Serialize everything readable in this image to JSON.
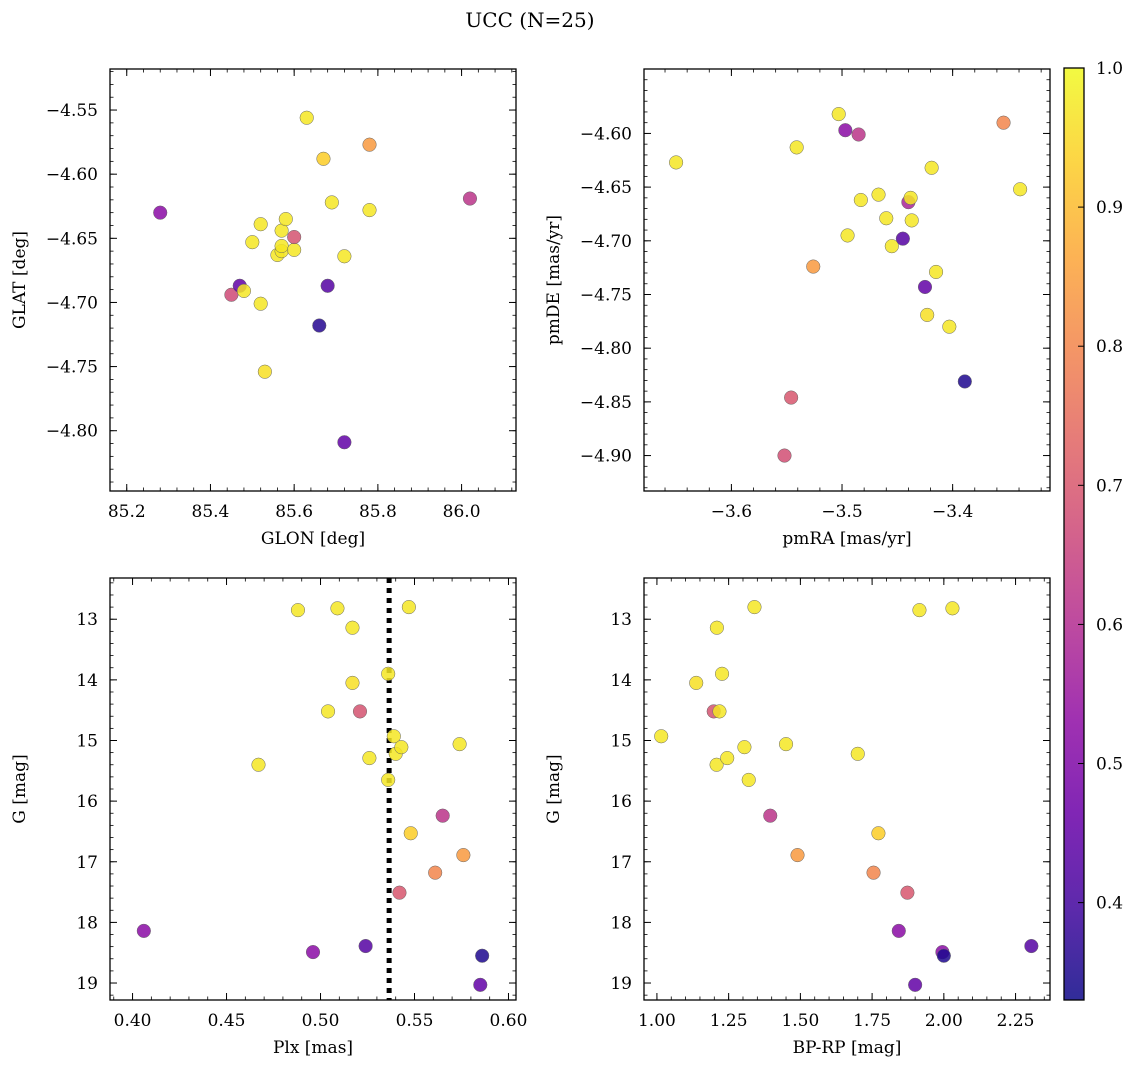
{
  "title": "UCC (N=25)",
  "colorbar": {
    "cmap": "plasma",
    "range": [
      0.33,
      1.0
    ],
    "ticks": [
      "1.0",
      "0.9",
      "0.8",
      "0.7",
      "0.6",
      "0.5",
      "0.4"
    ],
    "tick_values": [
      1.0,
      0.9,
      0.8,
      0.7,
      0.6,
      0.5,
      0.4
    ]
  },
  "chart_data": [
    {
      "type": "scatter",
      "xlabel": "GLON [deg]",
      "ylabel": "GLAT [deg]",
      "xlim": [
        85.16,
        86.13
      ],
      "ylim": [
        -4.847,
        -4.518
      ],
      "xticks": [
        "85.2",
        "85.4",
        "85.6",
        "85.8",
        "86.0"
      ],
      "xtick_values": [
        85.2,
        85.4,
        85.6,
        85.8,
        86.0
      ],
      "yticks": [
        "−4.55",
        "−4.60",
        "−4.65",
        "−4.70",
        "−4.75",
        "−4.80"
      ],
      "ytick_values": [
        -4.55,
        -4.6,
        -4.65,
        -4.7,
        -4.75,
        -4.8
      ],
      "points": [
        {
          "x": 85.28,
          "y": -4.63,
          "c": 0.52
        },
        {
          "x": 85.45,
          "y": -4.694,
          "c": 0.67
        },
        {
          "x": 85.47,
          "y": -4.687,
          "c": 0.45
        },
        {
          "x": 85.48,
          "y": -4.691,
          "c": 0.97
        },
        {
          "x": 85.5,
          "y": -4.653,
          "c": 0.97
        },
        {
          "x": 85.52,
          "y": -4.639,
          "c": 0.97
        },
        {
          "x": 85.52,
          "y": -4.701,
          "c": 0.97
        },
        {
          "x": 85.53,
          "y": -4.754,
          "c": 0.96
        },
        {
          "x": 85.56,
          "y": -4.663,
          "c": 0.97
        },
        {
          "x": 85.57,
          "y": -4.66,
          "c": 0.97
        },
        {
          "x": 85.57,
          "y": -4.656,
          "c": 0.97
        },
        {
          "x": 85.57,
          "y": -4.644,
          "c": 0.97
        },
        {
          "x": 85.58,
          "y": -4.635,
          "c": 0.97
        },
        {
          "x": 85.6,
          "y": -4.659,
          "c": 0.97
        },
        {
          "x": 85.6,
          "y": -4.649,
          "c": 0.69
        },
        {
          "x": 85.63,
          "y": -4.556,
          "c": 0.97
        },
        {
          "x": 85.66,
          "y": -4.718,
          "c": 0.36
        },
        {
          "x": 85.67,
          "y": -4.588,
          "c": 0.93
        },
        {
          "x": 85.68,
          "y": -4.687,
          "c": 0.43
        },
        {
          "x": 85.69,
          "y": -4.622,
          "c": 0.97
        },
        {
          "x": 85.72,
          "y": -4.664,
          "c": 0.97
        },
        {
          "x": 85.72,
          "y": -4.809,
          "c": 0.45
        },
        {
          "x": 85.78,
          "y": -4.577,
          "c": 0.84
        },
        {
          "x": 85.78,
          "y": -4.628,
          "c": 0.97
        },
        {
          "x": 86.02,
          "y": -4.619,
          "c": 0.62
        }
      ]
    },
    {
      "type": "scatter",
      "xlabel": "pmRA [mas/yr]",
      "ylabel": "pmDE [mas/yr]",
      "xlim": [
        -3.679,
        -3.312
      ],
      "ylim": [
        -4.933,
        -4.54
      ],
      "xticks": [
        "−3.6",
        "−3.5",
        "−3.4"
      ],
      "xtick_values": [
        -3.6,
        -3.5,
        -3.4
      ],
      "yticks": [
        "−4.60",
        "−4.65",
        "−4.70",
        "−4.75",
        "−4.80",
        "−4.85",
        "−4.90"
      ],
      "ytick_values": [
        -4.6,
        -4.65,
        -4.7,
        -4.75,
        -4.8,
        -4.85,
        -4.9
      ],
      "points": [
        {
          "x": -3.65,
          "y": -4.627,
          "c": 0.97
        },
        {
          "x": -3.552,
          "y": -4.9,
          "c": 0.68
        },
        {
          "x": -3.546,
          "y": -4.846,
          "c": 0.7
        },
        {
          "x": -3.541,
          "y": -4.613,
          "c": 0.97
        },
        {
          "x": -3.526,
          "y": -4.724,
          "c": 0.84
        },
        {
          "x": -3.503,
          "y": -4.582,
          "c": 0.97
        },
        {
          "x": -3.497,
          "y": -4.597,
          "c": 0.52
        },
        {
          "x": -3.495,
          "y": -4.695,
          "c": 0.97
        },
        {
          "x": -3.485,
          "y": -4.601,
          "c": 0.62
        },
        {
          "x": -3.483,
          "y": -4.662,
          "c": 0.97
        },
        {
          "x": -3.467,
          "y": -4.657,
          "c": 0.97
        },
        {
          "x": -3.46,
          "y": -4.679,
          "c": 0.97
        },
        {
          "x": -3.455,
          "y": -4.705,
          "c": 0.97
        },
        {
          "x": -3.445,
          "y": -4.698,
          "c": 0.43
        },
        {
          "x": -3.44,
          "y": -4.664,
          "c": 0.58
        },
        {
          "x": -3.438,
          "y": -4.66,
          "c": 0.97
        },
        {
          "x": -3.437,
          "y": -4.681,
          "c": 0.97
        },
        {
          "x": -3.425,
          "y": -4.743,
          "c": 0.45
        },
        {
          "x": -3.423,
          "y": -4.769,
          "c": 0.96
        },
        {
          "x": -3.419,
          "y": -4.632,
          "c": 0.97
        },
        {
          "x": -3.415,
          "y": -4.729,
          "c": 0.97
        },
        {
          "x": -3.403,
          "y": -4.78,
          "c": 0.97
        },
        {
          "x": -3.389,
          "y": -4.831,
          "c": 0.35
        },
        {
          "x": -3.354,
          "y": -4.59,
          "c": 0.8
        },
        {
          "x": -3.339,
          "y": -4.652,
          "c": 0.97
        }
      ]
    },
    {
      "type": "scatter",
      "xlabel": "Plx [mas]",
      "ylabel": "G [mag]",
      "xlim": [
        0.388,
        0.604
      ],
      "ylim": [
        19.28,
        12.32
      ],
      "xticks": [
        "0.40",
        "0.45",
        "0.50",
        "0.55",
        "0.60"
      ],
      "xtick_values": [
        0.4,
        0.45,
        0.5,
        0.55,
        0.6
      ],
      "yticks": [
        "13",
        "14",
        "15",
        "16",
        "17",
        "18",
        "19"
      ],
      "ytick_values": [
        13,
        14,
        15,
        16,
        17,
        18,
        19
      ],
      "vline": 0.5365,
      "points": [
        {
          "x": 0.406,
          "y": 18.14,
          "c": 0.52
        },
        {
          "x": 0.467,
          "y": 15.4,
          "c": 0.97
        },
        {
          "x": 0.488,
          "y": 12.85,
          "c": 0.97
        },
        {
          "x": 0.496,
          "y": 18.49,
          "c": 0.52
        },
        {
          "x": 0.504,
          "y": 14.52,
          "c": 0.97
        },
        {
          "x": 0.509,
          "y": 12.82,
          "c": 0.97
        },
        {
          "x": 0.517,
          "y": 14.05,
          "c": 0.96
        },
        {
          "x": 0.517,
          "y": 13.14,
          "c": 0.97
        },
        {
          "x": 0.521,
          "y": 14.52,
          "c": 0.69
        },
        {
          "x": 0.524,
          "y": 18.39,
          "c": 0.43
        },
        {
          "x": 0.526,
          "y": 15.29,
          "c": 0.97
        },
        {
          "x": 0.536,
          "y": 13.9,
          "c": 0.97
        },
        {
          "x": 0.536,
          "y": 15.65,
          "c": 0.97
        },
        {
          "x": 0.539,
          "y": 14.93,
          "c": 0.97
        },
        {
          "x": 0.54,
          "y": 15.22,
          "c": 0.97
        },
        {
          "x": 0.542,
          "y": 17.51,
          "c": 0.7
        },
        {
          "x": 0.543,
          "y": 15.11,
          "c": 0.97
        },
        {
          "x": 0.547,
          "y": 12.8,
          "c": 0.97
        },
        {
          "x": 0.548,
          "y": 16.53,
          "c": 0.93
        },
        {
          "x": 0.561,
          "y": 17.18,
          "c": 0.8
        },
        {
          "x": 0.565,
          "y": 16.24,
          "c": 0.62
        },
        {
          "x": 0.574,
          "y": 15.06,
          "c": 0.97
        },
        {
          "x": 0.576,
          "y": 16.89,
          "c": 0.84
        },
        {
          "x": 0.585,
          "y": 19.03,
          "c": 0.45
        },
        {
          "x": 0.586,
          "y": 18.55,
          "c": 0.35
        }
      ]
    },
    {
      "type": "scatter",
      "xlabel": "BP-RP [mag]",
      "ylabel": "G [mag]",
      "xlim": [
        0.955,
        2.37
      ],
      "ylim": [
        19.28,
        12.32
      ],
      "xticks": [
        "1.00",
        "1.25",
        "1.50",
        "1.75",
        "2.00",
        "2.25"
      ],
      "xtick_values": [
        1.0,
        1.25,
        1.5,
        1.75,
        2.0,
        2.25
      ],
      "yticks": [
        "13",
        "14",
        "15",
        "16",
        "17",
        "18",
        "19"
      ],
      "ytick_values": [
        13,
        14,
        15,
        16,
        17,
        18,
        19
      ],
      "points": [
        {
          "x": 1.015,
          "y": 14.93,
          "c": 0.97
        },
        {
          "x": 1.137,
          "y": 14.05,
          "c": 0.96
        },
        {
          "x": 1.198,
          "y": 14.52,
          "c": 0.69
        },
        {
          "x": 1.208,
          "y": 15.4,
          "c": 0.97
        },
        {
          "x": 1.209,
          "y": 13.14,
          "c": 0.97
        },
        {
          "x": 1.218,
          "y": 14.52,
          "c": 0.97
        },
        {
          "x": 1.227,
          "y": 13.9,
          "c": 0.97
        },
        {
          "x": 1.245,
          "y": 15.29,
          "c": 0.97
        },
        {
          "x": 1.305,
          "y": 15.11,
          "c": 0.97
        },
        {
          "x": 1.32,
          "y": 15.65,
          "c": 0.97
        },
        {
          "x": 1.34,
          "y": 12.8,
          "c": 0.97
        },
        {
          "x": 1.395,
          "y": 16.24,
          "c": 0.62
        },
        {
          "x": 1.45,
          "y": 15.06,
          "c": 0.97
        },
        {
          "x": 1.49,
          "y": 16.89,
          "c": 0.84
        },
        {
          "x": 1.7,
          "y": 15.22,
          "c": 0.97
        },
        {
          "x": 1.755,
          "y": 17.18,
          "c": 0.8
        },
        {
          "x": 1.772,
          "y": 16.53,
          "c": 0.93
        },
        {
          "x": 1.843,
          "y": 18.14,
          "c": 0.52
        },
        {
          "x": 1.873,
          "y": 17.51,
          "c": 0.7
        },
        {
          "x": 1.9,
          "y": 19.03,
          "c": 0.45
        },
        {
          "x": 1.915,
          "y": 12.85,
          "c": 0.97
        },
        {
          "x": 1.995,
          "y": 18.49,
          "c": 0.52
        },
        {
          "x": 2.0,
          "y": 18.55,
          "c": 0.35
        },
        {
          "x": 2.03,
          "y": 12.82,
          "c": 0.97
        },
        {
          "x": 2.305,
          "y": 18.39,
          "c": 0.43
        }
      ]
    }
  ]
}
